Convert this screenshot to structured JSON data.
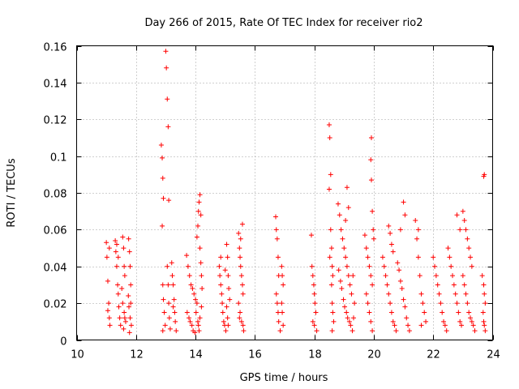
{
  "chart_data": {
    "type": "scatter",
    "title": "Day 266 of 2015, Rate Of TEC Index for receiver rio2",
    "xlabel": "GPS time / hours",
    "ylabel": "ROTI / TECUs",
    "xlim": [
      10,
      24
    ],
    "ylim": [
      0,
      0.16
    ],
    "x_ticks": [
      10,
      12,
      14,
      16,
      18,
      20,
      22,
      24
    ],
    "x_tick_labels": [
      "10",
      "12",
      "14",
      "16",
      "18",
      "20",
      "22",
      "24"
    ],
    "y_ticks": [
      0,
      0.02,
      0.04,
      0.06,
      0.08,
      0.1,
      0.12,
      0.14,
      0.16
    ],
    "y_tick_labels": [
      "0",
      "0.02",
      "0.04",
      "0.06",
      "0.08",
      "0.1",
      "0.12",
      "0.14",
      "0.16"
    ],
    "grid": true,
    "marker": "+",
    "color": "#ff0000",
    "series": [
      {
        "name": "ROTI",
        "points": [
          [
            11.0,
            0.053
          ],
          [
            11.02,
            0.045
          ],
          [
            11.05,
            0.032
          ],
          [
            11.08,
            0.02
          ],
          [
            11.1,
            0.012
          ],
          [
            11.12,
            0.008
          ],
          [
            11.05,
            0.016
          ],
          [
            11.1,
            0.05
          ],
          [
            11.3,
            0.054
          ],
          [
            11.32,
            0.048
          ],
          [
            11.35,
            0.04
          ],
          [
            11.38,
            0.03
          ],
          [
            11.4,
            0.025
          ],
          [
            11.42,
            0.018
          ],
          [
            11.45,
            0.012
          ],
          [
            11.48,
            0.008
          ],
          [
            11.35,
            0.052
          ],
          [
            11.4,
            0.045
          ],
          [
            11.55,
            0.056
          ],
          [
            11.58,
            0.05
          ],
          [
            11.6,
            0.04
          ],
          [
            11.62,
            0.035
          ],
          [
            11.52,
            0.028
          ],
          [
            11.55,
            0.02
          ],
          [
            11.6,
            0.015
          ],
          [
            11.65,
            0.01
          ],
          [
            11.58,
            0.006
          ],
          [
            11.62,
            0.012
          ],
          [
            11.75,
            0.055
          ],
          [
            11.78,
            0.048
          ],
          [
            11.8,
            0.04
          ],
          [
            11.82,
            0.03
          ],
          [
            11.74,
            0.024
          ],
          [
            11.76,
            0.018
          ],
          [
            11.8,
            0.012
          ],
          [
            11.84,
            0.008
          ],
          [
            11.78,
            0.004
          ],
          [
            11.82,
            0.02
          ],
          [
            12.85,
            0.106
          ],
          [
            12.88,
            0.099
          ],
          [
            12.9,
            0.088
          ],
          [
            12.92,
            0.077
          ],
          [
            12.88,
            0.062
          ],
          [
            12.9,
            0.03
          ],
          [
            12.92,
            0.022
          ],
          [
            12.95,
            0.015
          ],
          [
            12.98,
            0.008
          ],
          [
            12.9,
            0.005
          ],
          [
            13.0,
            0.157
          ],
          [
            13.02,
            0.148
          ],
          [
            13.05,
            0.131
          ],
          [
            13.08,
            0.116
          ],
          [
            13.1,
            0.076
          ],
          [
            13.05,
            0.04
          ],
          [
            13.08,
            0.03
          ],
          [
            13.1,
            0.02
          ],
          [
            13.12,
            0.012
          ],
          [
            13.15,
            0.006
          ],
          [
            13.2,
            0.042
          ],
          [
            13.22,
            0.035
          ],
          [
            13.25,
            0.03
          ],
          [
            13.28,
            0.022
          ],
          [
            13.3,
            0.015
          ],
          [
            13.32,
            0.01
          ],
          [
            13.35,
            0.005
          ],
          [
            13.25,
            0.018
          ],
          [
            13.7,
            0.046
          ],
          [
            13.75,
            0.04
          ],
          [
            13.8,
            0.035
          ],
          [
            13.85,
            0.03
          ],
          [
            13.9,
            0.028
          ],
          [
            13.95,
            0.025
          ],
          [
            14.0,
            0.022
          ],
          [
            14.05,
            0.02
          ],
          [
            13.72,
            0.015
          ],
          [
            13.78,
            0.012
          ],
          [
            13.82,
            0.01
          ],
          [
            13.88,
            0.008
          ],
          [
            13.92,
            0.005
          ],
          [
            13.98,
            0.004
          ],
          [
            14.02,
            0.015
          ],
          [
            14.08,
            0.01
          ],
          [
            14.1,
            0.008
          ],
          [
            14.12,
            0.005
          ],
          [
            14.05,
            0.056
          ],
          [
            14.08,
            0.062
          ],
          [
            14.1,
            0.07
          ],
          [
            14.12,
            0.075
          ],
          [
            14.15,
            0.079
          ],
          [
            14.18,
            0.068
          ],
          [
            14.15,
            0.05
          ],
          [
            14.18,
            0.042
          ],
          [
            14.2,
            0.035
          ],
          [
            14.22,
            0.028
          ],
          [
            14.2,
            0.018
          ],
          [
            14.15,
            0.012
          ],
          [
            14.8,
            0.04
          ],
          [
            14.82,
            0.035
          ],
          [
            14.85,
            0.03
          ],
          [
            14.88,
            0.025
          ],
          [
            14.9,
            0.02
          ],
          [
            14.92,
            0.015
          ],
          [
            14.95,
            0.01
          ],
          [
            14.98,
            0.008
          ],
          [
            14.85,
            0.045
          ],
          [
            15.0,
            0.038
          ],
          [
            15.05,
            0.052
          ],
          [
            15.08,
            0.045
          ],
          [
            15.1,
            0.035
          ],
          [
            15.12,
            0.028
          ],
          [
            15.15,
            0.022
          ],
          [
            15.05,
            0.018
          ],
          [
            15.08,
            0.012
          ],
          [
            15.1,
            0.008
          ],
          [
            15.02,
            0.005
          ],
          [
            15.45,
            0.058
          ],
          [
            15.48,
            0.05
          ],
          [
            15.5,
            0.045
          ],
          [
            15.52,
            0.04
          ],
          [
            15.55,
            0.035
          ],
          [
            15.58,
            0.03
          ],
          [
            15.6,
            0.025
          ],
          [
            15.45,
            0.02
          ],
          [
            15.5,
            0.015
          ],
          [
            15.55,
            0.01
          ],
          [
            15.6,
            0.008
          ],
          [
            15.58,
            0.063
          ],
          [
            15.52,
            0.055
          ],
          [
            15.48,
            0.012
          ],
          [
            15.62,
            0.005
          ],
          [
            16.7,
            0.067
          ],
          [
            16.72,
            0.06
          ],
          [
            16.75,
            0.055
          ],
          [
            16.78,
            0.045
          ],
          [
            16.8,
            0.035
          ],
          [
            16.72,
            0.025
          ],
          [
            16.75,
            0.02
          ],
          [
            16.78,
            0.015
          ],
          [
            16.8,
            0.01
          ],
          [
            16.85,
            0.005
          ],
          [
            16.9,
            0.04
          ],
          [
            16.92,
            0.035
          ],
          [
            16.95,
            0.03
          ],
          [
            16.9,
            0.02
          ],
          [
            16.92,
            0.015
          ],
          [
            16.95,
            0.008
          ],
          [
            17.9,
            0.057
          ],
          [
            17.92,
            0.04
          ],
          [
            17.95,
            0.035
          ],
          [
            17.98,
            0.03
          ],
          [
            18.0,
            0.025
          ],
          [
            18.02,
            0.02
          ],
          [
            18.05,
            0.015
          ],
          [
            17.95,
            0.01
          ],
          [
            18.0,
            0.008
          ],
          [
            18.08,
            0.005
          ],
          [
            18.5,
            0.117
          ],
          [
            18.52,
            0.11
          ],
          [
            18.55,
            0.09
          ],
          [
            18.5,
            0.082
          ],
          [
            18.55,
            0.06
          ],
          [
            18.58,
            0.05
          ],
          [
            18.6,
            0.04
          ],
          [
            18.62,
            0.035
          ],
          [
            18.58,
            0.03
          ],
          [
            18.6,
            0.02
          ],
          [
            18.62,
            0.015
          ],
          [
            18.65,
            0.01
          ],
          [
            18.6,
            0.005
          ],
          [
            18.52,
            0.045
          ],
          [
            18.8,
            0.074
          ],
          [
            18.85,
            0.068
          ],
          [
            18.9,
            0.06
          ],
          [
            18.95,
            0.055
          ],
          [
            19.0,
            0.05
          ],
          [
            19.05,
            0.045
          ],
          [
            19.1,
            0.04
          ],
          [
            19.15,
            0.035
          ],
          [
            19.2,
            0.03
          ],
          [
            19.25,
            0.025
          ],
          [
            18.82,
            0.038
          ],
          [
            18.88,
            0.032
          ],
          [
            18.92,
            0.028
          ],
          [
            18.98,
            0.022
          ],
          [
            19.02,
            0.018
          ],
          [
            19.08,
            0.015
          ],
          [
            19.12,
            0.012
          ],
          [
            19.18,
            0.01
          ],
          [
            19.22,
            0.008
          ],
          [
            19.28,
            0.005
          ],
          [
            19.1,
            0.083
          ],
          [
            19.15,
            0.072
          ],
          [
            19.05,
            0.065
          ],
          [
            19.3,
            0.035
          ],
          [
            19.35,
            0.02
          ],
          [
            19.32,
            0.012
          ],
          [
            19.7,
            0.057
          ],
          [
            19.75,
            0.05
          ],
          [
            19.8,
            0.045
          ],
          [
            19.85,
            0.04
          ],
          [
            19.9,
            0.035
          ],
          [
            19.95,
            0.03
          ],
          [
            19.75,
            0.025
          ],
          [
            19.8,
            0.02
          ],
          [
            19.85,
            0.015
          ],
          [
            19.9,
            0.01
          ],
          [
            19.95,
            0.005
          ],
          [
            19.92,
            0.11
          ],
          [
            19.9,
            0.098
          ],
          [
            19.92,
            0.087
          ],
          [
            19.95,
            0.07
          ],
          [
            19.98,
            0.06
          ],
          [
            20.0,
            0.055
          ],
          [
            20.3,
            0.045
          ],
          [
            20.35,
            0.04
          ],
          [
            20.4,
            0.035
          ],
          [
            20.45,
            0.03
          ],
          [
            20.5,
            0.025
          ],
          [
            20.55,
            0.02
          ],
          [
            20.6,
            0.015
          ],
          [
            20.65,
            0.01
          ],
          [
            20.7,
            0.008
          ],
          [
            20.75,
            0.005
          ],
          [
            20.5,
            0.062
          ],
          [
            20.55,
            0.058
          ],
          [
            20.6,
            0.052
          ],
          [
            20.65,
            0.048
          ],
          [
            20.8,
            0.042
          ],
          [
            20.85,
            0.038
          ],
          [
            20.9,
            0.032
          ],
          [
            20.95,
            0.028
          ],
          [
            21.0,
            0.022
          ],
          [
            21.05,
            0.018
          ],
          [
            21.0,
            0.075
          ],
          [
            21.05,
            0.068
          ],
          [
            20.9,
            0.06
          ],
          [
            21.1,
            0.012
          ],
          [
            21.15,
            0.008
          ],
          [
            21.2,
            0.005
          ],
          [
            21.4,
            0.065
          ],
          [
            21.45,
            0.055
          ],
          [
            21.5,
            0.045
          ],
          [
            21.55,
            0.035
          ],
          [
            21.6,
            0.025
          ],
          [
            21.65,
            0.02
          ],
          [
            21.7,
            0.015
          ],
          [
            21.75,
            0.01
          ],
          [
            21.5,
            0.06
          ],
          [
            21.6,
            0.008
          ],
          [
            22.0,
            0.045
          ],
          [
            22.05,
            0.04
          ],
          [
            22.1,
            0.035
          ],
          [
            22.15,
            0.03
          ],
          [
            22.2,
            0.025
          ],
          [
            22.25,
            0.02
          ],
          [
            22.3,
            0.015
          ],
          [
            22.35,
            0.01
          ],
          [
            22.4,
            0.008
          ],
          [
            22.45,
            0.005
          ],
          [
            22.5,
            0.05
          ],
          [
            22.55,
            0.045
          ],
          [
            22.6,
            0.04
          ],
          [
            22.65,
            0.035
          ],
          [
            22.7,
            0.03
          ],
          [
            22.75,
            0.025
          ],
          [
            22.8,
            0.02
          ],
          [
            22.85,
            0.015
          ],
          [
            22.9,
            0.01
          ],
          [
            22.95,
            0.008
          ],
          [
            23.0,
            0.07
          ],
          [
            23.05,
            0.065
          ],
          [
            23.1,
            0.06
          ],
          [
            23.15,
            0.055
          ],
          [
            23.2,
            0.05
          ],
          [
            23.25,
            0.045
          ],
          [
            23.3,
            0.04
          ],
          [
            23.0,
            0.035
          ],
          [
            23.05,
            0.03
          ],
          [
            23.1,
            0.025
          ],
          [
            23.15,
            0.02
          ],
          [
            23.2,
            0.015
          ],
          [
            23.25,
            0.012
          ],
          [
            23.3,
            0.01
          ],
          [
            23.35,
            0.008
          ],
          [
            23.4,
            0.005
          ],
          [
            22.8,
            0.068
          ],
          [
            22.9,
            0.06
          ],
          [
            23.65,
            0.035
          ],
          [
            23.7,
            0.03
          ],
          [
            23.72,
            0.025
          ],
          [
            23.75,
            0.02
          ],
          [
            23.68,
            0.015
          ],
          [
            23.7,
            0.01
          ],
          [
            23.72,
            0.008
          ],
          [
            23.75,
            0.005
          ],
          [
            23.7,
            0.089
          ],
          [
            23.72,
            0.09
          ]
        ]
      }
    ]
  }
}
